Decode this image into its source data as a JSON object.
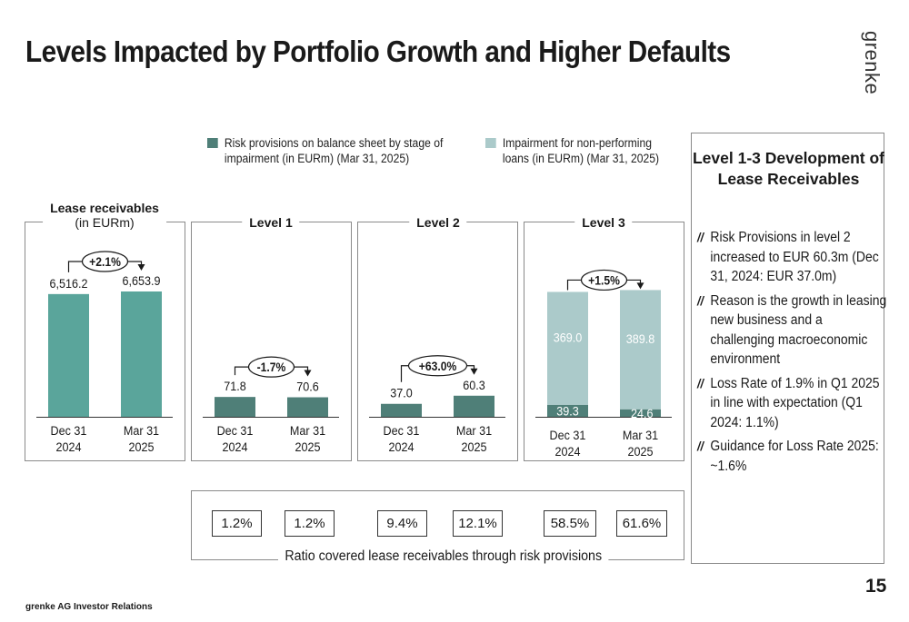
{
  "title": "Levels Impacted by Portfolio Growth and Higher Defaults",
  "logo": "grenke",
  "legend": [
    {
      "label": "Risk provisions on balance sheet by stage of impairment (in EURm) (Mar 31, 2025)",
      "color": "#4f7f78"
    },
    {
      "label": "Impairment for non-performing loans (in EURm) (Mar 31, 2025)",
      "color": "#abcaca"
    }
  ],
  "panels": {
    "lease": {
      "title": "Lease receivables",
      "subtitle": "(in EURm)"
    },
    "level1": {
      "title": "Level 1"
    },
    "level2": {
      "title": "Level 2"
    },
    "level3": {
      "title": "Level 3"
    }
  },
  "chart_data": [
    {
      "type": "bar",
      "title": "Lease receivables",
      "subtitle": "(in EURm)",
      "categories": [
        "Dec 31\n2024",
        "Mar 31\n2025"
      ],
      "values": [
        6516.2,
        6653.9
      ],
      "labels": [
        "6,516.2",
        "6,653.9"
      ],
      "change": "+2.1%",
      "color": "#5aa59b"
    },
    {
      "type": "bar",
      "title": "Level 1",
      "categories": [
        "Dec 31\n2024",
        "Mar 31\n2025"
      ],
      "values": [
        71.8,
        70.6
      ],
      "labels": [
        "71.8",
        "70.6"
      ],
      "change": "-1.7%",
      "color": "#4f7f78"
    },
    {
      "type": "bar",
      "title": "Level 2",
      "categories": [
        "Dec 31\n2024",
        "Mar 31\n2025"
      ],
      "values": [
        37.0,
        60.3
      ],
      "labels": [
        "37.0",
        "60.3"
      ],
      "change": "+63.0%",
      "color": "#4f7f78"
    },
    {
      "type": "bar",
      "stacked": true,
      "title": "Level 3",
      "categories": [
        "Dec 31\n2024",
        "Mar 31\n2025"
      ],
      "series": [
        {
          "values": [
            39.3,
            24.6
          ],
          "labels": [
            "39.3",
            "24.6"
          ],
          "color": "#4f7f78"
        },
        {
          "values": [
            369.0,
            389.8
          ],
          "labels": [
            "369.0",
            "389.8"
          ],
          "color": "#abcaca"
        }
      ],
      "change": "+1.5%"
    }
  ],
  "ratios": {
    "values": [
      "1.2%",
      "1.2%",
      "9.4%",
      "12.1%",
      "58.5%",
      "61.6%"
    ],
    "caption": "Ratio covered lease receivables through risk provisions"
  },
  "side": {
    "title": "Level 1-3 Development of Lease Receivables",
    "bullets": [
      "Risk Provisions in level 2 increased to EUR 60.3m (Dec 31, 2024: EUR 37.0m)",
      "Reason is the growth in leasing new business and a challenging macroeconomic environment",
      "Loss Rate of 1.9% in Q1 2025 in line with expectation (Q1 2024: 1.1%)",
      "Guidance for Loss Rate 2025: ~1.6%"
    ]
  },
  "footer": "grenke AG Investor Relations",
  "page_number": "15"
}
